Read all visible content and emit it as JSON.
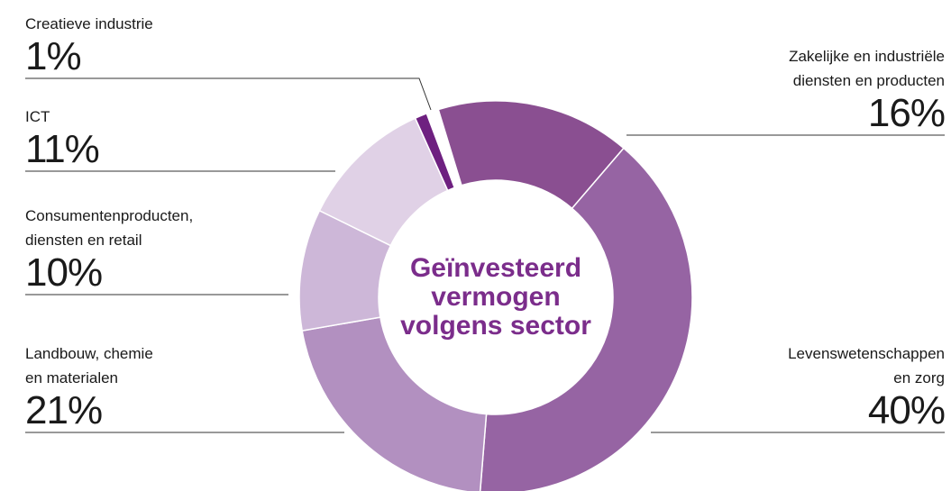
{
  "chart_data": {
    "type": "donut",
    "title": "Geïnvesteerd vermogen volgens sector",
    "categories": [
      "Zakelijke en industriële\ndiensten en producten",
      "Levenswetenschappen\nen zorg",
      "Landbouw, chemie\nen materialen",
      "Consumentenproducten,\ndiensten en retail",
      "ICT",
      "Creatieve industrie"
    ],
    "values": [
      16,
      40,
      21,
      10,
      11,
      1
    ],
    "value_labels": [
      "16%",
      "40%",
      "21%",
      "10%",
      "11%",
      "1%"
    ],
    "colors": [
      "#8a4f91",
      "#9664a3",
      "#b290c0",
      "#cdb7d8",
      "#e0d1e6",
      "#6e2080"
    ],
    "title_color": "#7b2d8b"
  }
}
